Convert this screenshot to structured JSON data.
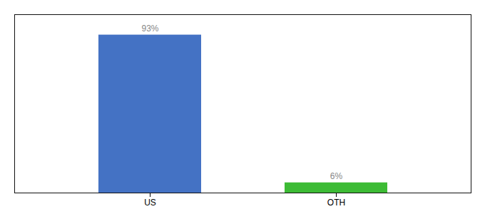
{
  "chart_data": {
    "type": "bar",
    "categories": [
      "US",
      "OTH"
    ],
    "values": [
      93,
      6
    ],
    "value_labels": [
      "93%",
      "6%"
    ],
    "colors": [
      "#4472c4",
      "#3dbb35"
    ],
    "ylim": [
      0,
      105
    ],
    "data_labels": true,
    "tick_labels": "x"
  }
}
